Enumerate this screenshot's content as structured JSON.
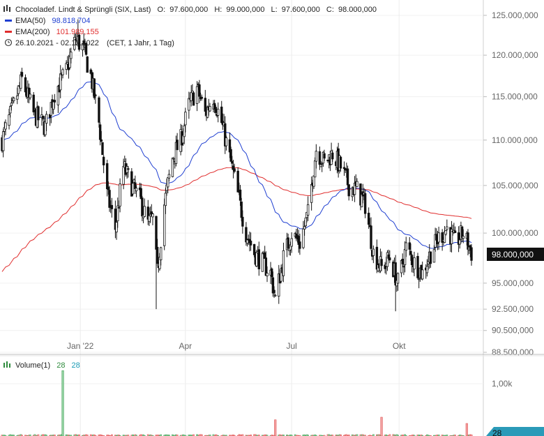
{
  "header": {
    "symbol_line": "Chocoladef. Lindt & Sprüngli (SIX, Last)",
    "ohlc": [
      {
        "label": "O:",
        "value": "97.600,000"
      },
      {
        "label": "H:",
        "value": "99.000,000"
      },
      {
        "label": "L:",
        "value": "97.600,000"
      },
      {
        "label": "C:",
        "value": "98.000,000"
      }
    ],
    "ema50": {
      "label": "EMA(50)",
      "value": "98.818,704",
      "color": "#1f3fd1"
    },
    "ema200": {
      "label": "EMA(200)",
      "value": "101.989,155",
      "color": "#e02d2d"
    },
    "range": {
      "label": "26.10.2021 - 02.12.2022",
      "detail": "(CET, 1 Jahr, 1 Tag)"
    }
  },
  "volume_legend": {
    "label": "Volume(1)",
    "v1": "28",
    "v2": "28",
    "v1_color": "#2e8b3d",
    "v2_color": "#1a9bb5"
  },
  "price_badge": {
    "value": "98.000,000",
    "color": "#111111"
  },
  "volume_badge": {
    "value": "28",
    "color": "#2a9ab8"
  },
  "chart_data": {
    "type": "candlestick",
    "y_axis": {
      "ticks": [
        {
          "value": 125000,
          "label": "125.000,000"
        },
        {
          "value": 120000,
          "label": "120.000,000"
        },
        {
          "value": 115000,
          "label": "115.000,000"
        },
        {
          "value": 110000,
          "label": "110.000,000"
        },
        {
          "value": 105000,
          "label": "105.000,000"
        },
        {
          "value": 100000,
          "label": "100.000,000"
        },
        {
          "value": 95000,
          "label": "95.000,000"
        },
        {
          "value": 92500,
          "label": "92.500,000"
        },
        {
          "value": 90500,
          "label": "90.500,000"
        },
        {
          "value": 88500,
          "label": "88.500,000"
        }
      ],
      "scale": "log"
    },
    "x_axis": {
      "start": "2021-10-26",
      "end": "2022-12-02",
      "ticks": [
        {
          "date": "2022-01-01",
          "label": "Jan '22"
        },
        {
          "date": "2022-04-01",
          "label": "Apr"
        },
        {
          "date": "2022-07-01",
          "label": "Jul"
        },
        {
          "date": "2022-10-01",
          "label": "Okt"
        }
      ]
    },
    "price_anchors": [
      [
        "2021-10-26",
        110000
      ],
      [
        "2021-11-05",
        114000
      ],
      [
        "2021-11-12",
        117000
      ],
      [
        "2021-11-22",
        113000
      ],
      [
        "2021-12-02",
        111500
      ],
      [
        "2021-12-10",
        115500
      ],
      [
        "2021-12-20",
        118000
      ],
      [
        "2021-12-28",
        122000
      ],
      [
        "2022-01-03",
        121000
      ],
      [
        "2022-01-10",
        117500
      ],
      [
        "2022-01-17",
        112000
      ],
      [
        "2022-01-24",
        104000
      ],
      [
        "2022-01-31",
        100500
      ],
      [
        "2022-02-07",
        107000
      ],
      [
        "2022-02-14",
        105000
      ],
      [
        "2022-02-21",
        103500
      ],
      [
        "2022-02-28",
        101000
      ],
      [
        "2022-03-04",
        101500
      ],
      [
        "2022-03-08",
        96000
      ],
      [
        "2022-03-14",
        103000
      ],
      [
        "2022-03-21",
        108000
      ],
      [
        "2022-03-28",
        110000
      ],
      [
        "2022-04-04",
        114000
      ],
      [
        "2022-04-11",
        116000
      ],
      [
        "2022-04-18",
        113000
      ],
      [
        "2022-04-25",
        115000
      ],
      [
        "2022-05-02",
        112000
      ],
      [
        "2022-05-09",
        108000
      ],
      [
        "2022-05-16",
        104000
      ],
      [
        "2022-05-23",
        100000
      ],
      [
        "2022-05-30",
        98000
      ],
      [
        "2022-06-06",
        97000
      ],
      [
        "2022-06-13",
        96000
      ],
      [
        "2022-06-17",
        93500
      ],
      [
        "2022-06-24",
        97500
      ],
      [
        "2022-07-01",
        100000
      ],
      [
        "2022-07-08",
        99000
      ],
      [
        "2022-07-15",
        102000
      ],
      [
        "2022-07-22",
        109000
      ],
      [
        "2022-07-29",
        107500
      ],
      [
        "2022-08-05",
        108500
      ],
      [
        "2022-08-12",
        107000
      ],
      [
        "2022-08-19",
        105000
      ],
      [
        "2022-08-26",
        104500
      ],
      [
        "2022-09-02",
        103000
      ],
      [
        "2022-09-09",
        98000
      ],
      [
        "2022-09-16",
        96500
      ],
      [
        "2022-09-23",
        97500
      ],
      [
        "2022-09-30",
        95000
      ],
      [
        "2022-10-07",
        98500
      ],
      [
        "2022-10-14",
        97000
      ],
      [
        "2022-10-21",
        96000
      ],
      [
        "2022-10-28",
        98000
      ],
      [
        "2022-11-04",
        99500
      ],
      [
        "2022-11-11",
        100500
      ],
      [
        "2022-11-18",
        99000
      ],
      [
        "2022-11-25",
        100000
      ],
      [
        "2022-12-02",
        98000
      ]
    ],
    "overlays": [
      {
        "name": "EMA(50)",
        "color": "#1f3fd1"
      },
      {
        "name": "EMA(200)",
        "color": "#e02d2d"
      }
    ],
    "volume": {
      "y_ticks": [
        {
          "value": 1000,
          "label": "1,00k"
        }
      ],
      "spikes": [
        {
          "date": "2021-12-17",
          "value": 1250,
          "direction": "up"
        },
        {
          "date": "2022-06-17",
          "value": 310,
          "direction": "down"
        },
        {
          "date": "2022-09-16",
          "value": 360,
          "direction": "down"
        },
        {
          "date": "2022-11-28",
          "value": 240,
          "direction": "down"
        }
      ]
    }
  }
}
